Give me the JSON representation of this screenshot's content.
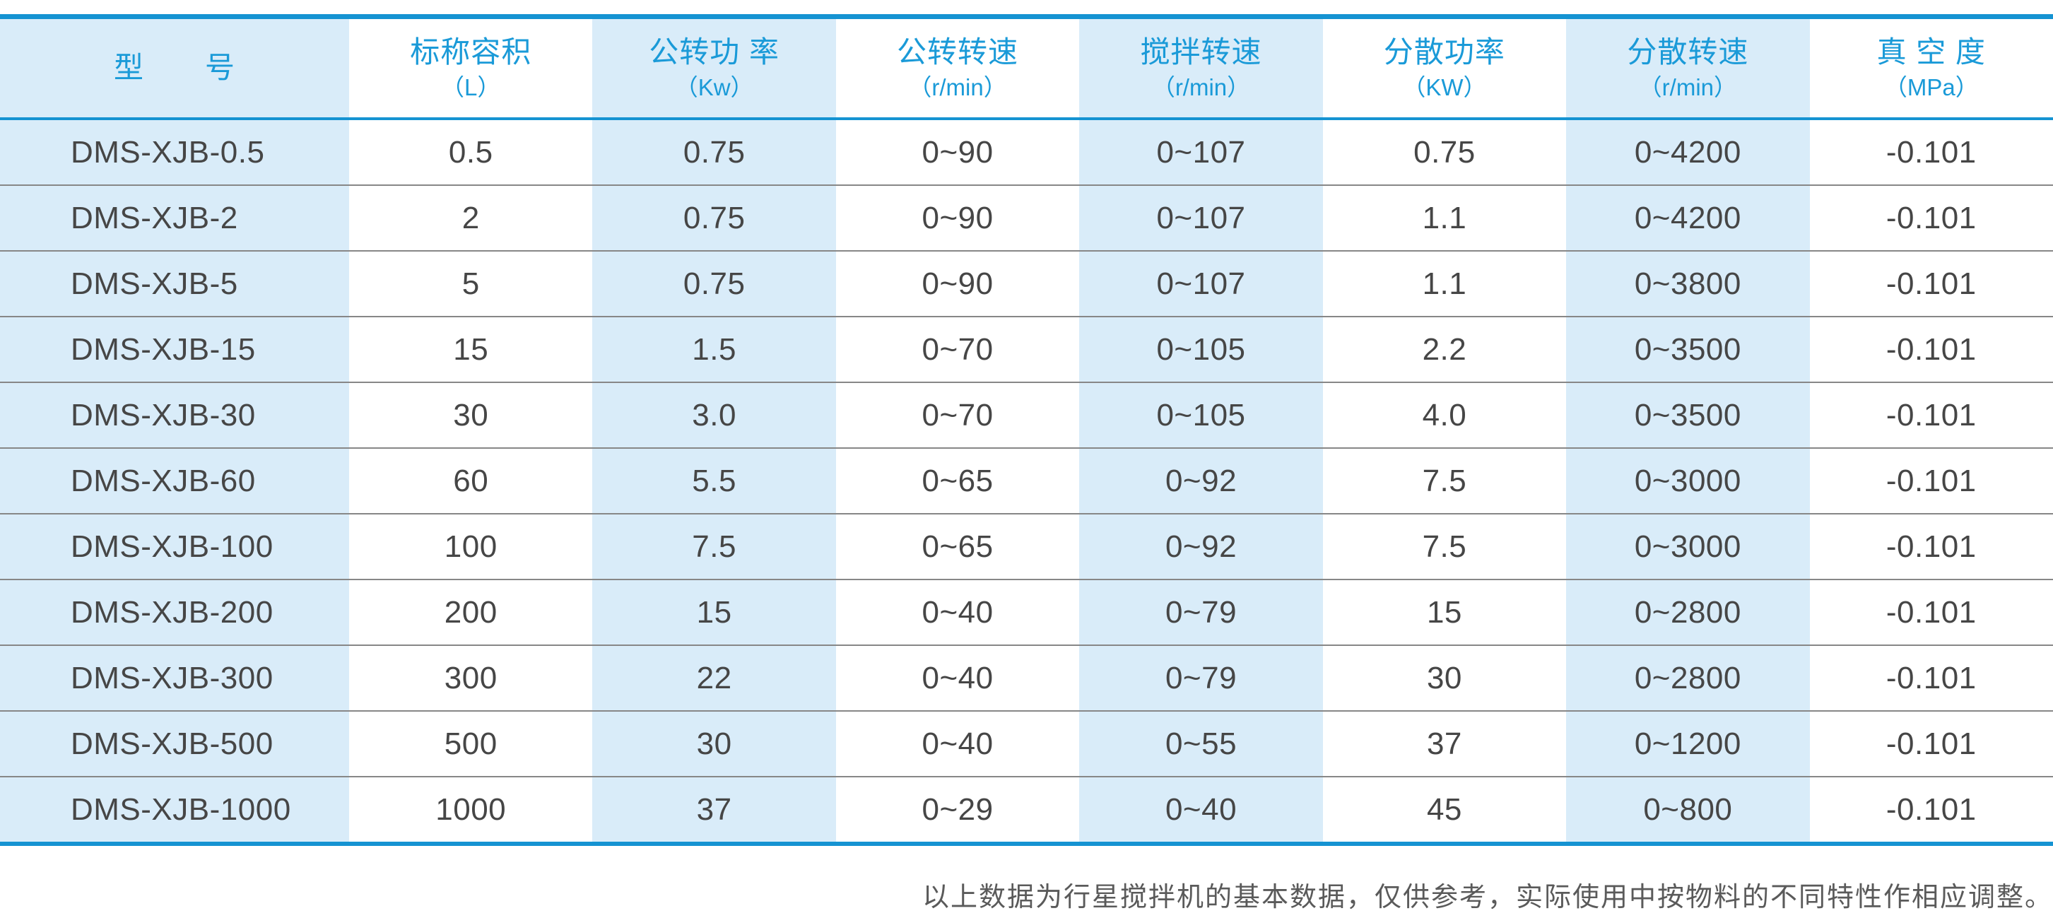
{
  "table": {
    "columns": [
      {
        "label": "型　　号",
        "unit": ""
      },
      {
        "label": "标称容积",
        "unit": "（L）"
      },
      {
        "label": "公转功 率",
        "unit": "（Kw）"
      },
      {
        "label": "公转转速",
        "unit": "（r/min）"
      },
      {
        "label": "搅拌转速",
        "unit": "（r/min）"
      },
      {
        "label": "分散功率",
        "unit": "（KW）"
      },
      {
        "label": "分散转速",
        "unit": "（r/min）"
      },
      {
        "label": "真 空 度",
        "unit": "（MPa）"
      }
    ],
    "rows": [
      [
        "DMS-XJB-0.5",
        "0.5",
        "0.75",
        "0~90",
        "0~107",
        "0.75",
        "0~4200",
        "-0.101"
      ],
      [
        "DMS-XJB-2",
        "2",
        "0.75",
        "0~90",
        "0~107",
        "1.1",
        "0~4200",
        "-0.101"
      ],
      [
        "DMS-XJB-5",
        "5",
        "0.75",
        "0~90",
        "0~107",
        "1.1",
        "0~3800",
        "-0.101"
      ],
      [
        "DMS-XJB-15",
        "15",
        "1.5",
        "0~70",
        "0~105",
        "2.2",
        "0~3500",
        "-0.101"
      ],
      [
        "DMS-XJB-30",
        "30",
        "3.0",
        "0~70",
        "0~105",
        "4.0",
        "0~3500",
        "-0.101"
      ],
      [
        "DMS-XJB-60",
        "60",
        "5.5",
        "0~65",
        "0~92",
        "7.5",
        "0~3000",
        "-0.101"
      ],
      [
        "DMS-XJB-100",
        "100",
        "7.5",
        "0~65",
        "0~92",
        "7.5",
        "0~3000",
        "-0.101"
      ],
      [
        "DMS-XJB-200",
        "200",
        "15",
        "0~40",
        "0~79",
        "15",
        "0~2800",
        "-0.101"
      ],
      [
        "DMS-XJB-300",
        "300",
        "22",
        "0~40",
        "0~79",
        "30",
        "0~2800",
        "-0.101"
      ],
      [
        "DMS-XJB-500",
        "500",
        "30",
        "0~40",
        "0~55",
        "37",
        "0~1200",
        "-0.101"
      ],
      [
        "DMS-XJB-1000",
        "1000",
        "37",
        "0~29",
        "0~40",
        "45",
        "0~800",
        "-0.101"
      ]
    ]
  },
  "footnote": "以上数据为行星搅拌机的基本数据，仅供参考，实际使用中按物料的不同特性作相应调整。",
  "colors": {
    "accent_blue": "#1593d2",
    "header_text_blue": "#1a9ad8",
    "stripe_blue": "#d9ecf9",
    "separator_gray": "#878787"
  }
}
